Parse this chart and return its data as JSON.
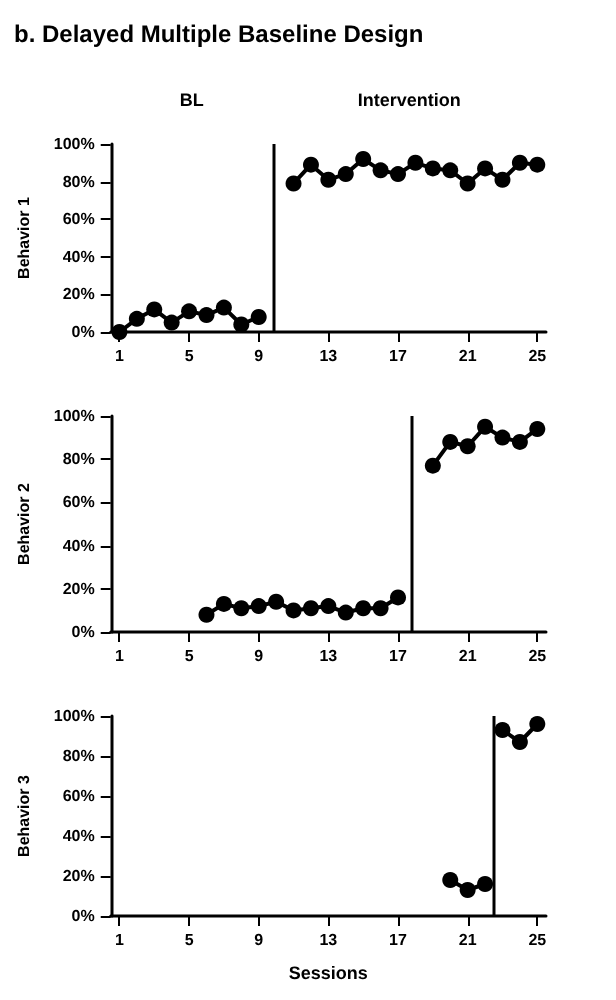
{
  "chart_data": [
    {
      "type": "line",
      "title": "b. Delayed Multiple Baseline Design",
      "ylabel": "Behavior 1",
      "annotations": [
        "BL",
        "Intervention"
      ],
      "marker": "circle",
      "xlim": [
        0.5,
        25.5
      ],
      "xticks": [
        1,
        5,
        9,
        13,
        17,
        21,
        25
      ],
      "ylim": [
        0,
        100
      ],
      "yticks": [
        {
          "value": 0,
          "label": "0%"
        },
        {
          "value": 20,
          "label": "20%"
        },
        {
          "value": 40,
          "label": "40%"
        },
        {
          "value": 60,
          "label": "60%"
        },
        {
          "value": 80,
          "label": "80%"
        },
        {
          "value": 100,
          "label": "100%"
        }
      ],
      "ref_lines": [
        {
          "axis": "x",
          "value": 9.8,
          "color": "#000000"
        }
      ],
      "series": [
        {
          "color": "#000000",
          "x": [
            1,
            2,
            3,
            4,
            5,
            6,
            7,
            8,
            9
          ],
          "values": [
            0,
            7,
            12,
            5,
            11,
            9,
            13,
            4,
            8
          ]
        },
        {
          "color": "#000000",
          "x": [
            11,
            12,
            13,
            14,
            15,
            16,
            17,
            18,
            19,
            20,
            21,
            22,
            23,
            24,
            25
          ],
          "values": [
            79,
            89,
            81,
            84,
            92,
            86,
            84,
            90,
            87,
            86,
            79,
            87,
            81,
            90,
            89
          ]
        }
      ]
    },
    {
      "type": "line",
      "ylabel": "Behavior 2",
      "marker": "circle",
      "xlim": [
        0.5,
        25.5
      ],
      "xticks": [
        1,
        5,
        9,
        13,
        17,
        21,
        25
      ],
      "ylim": [
        0,
        100
      ],
      "yticks": [
        {
          "value": 0,
          "label": "0%"
        },
        {
          "value": 20,
          "label": "20%"
        },
        {
          "value": 40,
          "label": "40%"
        },
        {
          "value": 60,
          "label": "60%"
        },
        {
          "value": 80,
          "label": "80%"
        },
        {
          "value": 100,
          "label": "100%"
        }
      ],
      "ref_lines": [
        {
          "axis": "x",
          "value": 17.8,
          "color": "#000000"
        }
      ],
      "series": [
        {
          "color": "#000000",
          "x": [
            6,
            7,
            8,
            9,
            10,
            11,
            12,
            13,
            14,
            15,
            16,
            17
          ],
          "values": [
            8,
            13,
            11,
            12,
            14,
            10,
            11,
            12,
            9,
            11,
            11,
            16
          ]
        },
        {
          "color": "#000000",
          "x": [
            19,
            20,
            21,
            22,
            23,
            24,
            25
          ],
          "values": [
            77,
            88,
            86,
            95,
            90,
            88,
            94
          ]
        }
      ]
    },
    {
      "type": "line",
      "ylabel": "Behavior 3",
      "xlabel": "Sessions",
      "marker": "circle",
      "xlim": [
        0.5,
        25.5
      ],
      "xticks": [
        1,
        5,
        9,
        13,
        17,
        21,
        25
      ],
      "ylim": [
        0,
        100
      ],
      "yticks": [
        {
          "value": 0,
          "label": "0%"
        },
        {
          "value": 20,
          "label": "20%"
        },
        {
          "value": 40,
          "label": "40%"
        },
        {
          "value": 60,
          "label": "60%"
        },
        {
          "value": 80,
          "label": "80%"
        },
        {
          "value": 100,
          "label": "100%"
        }
      ],
      "ref_lines": [
        {
          "axis": "x",
          "value": 22.5,
          "color": "#000000"
        }
      ],
      "series": [
        {
          "color": "#000000",
          "x": [
            20,
            21,
            22
          ],
          "values": [
            18,
            13,
            16
          ]
        },
        {
          "color": "#000000",
          "x": [
            23,
            24,
            25
          ],
          "values": [
            93,
            87,
            96
          ]
        }
      ]
    }
  ]
}
